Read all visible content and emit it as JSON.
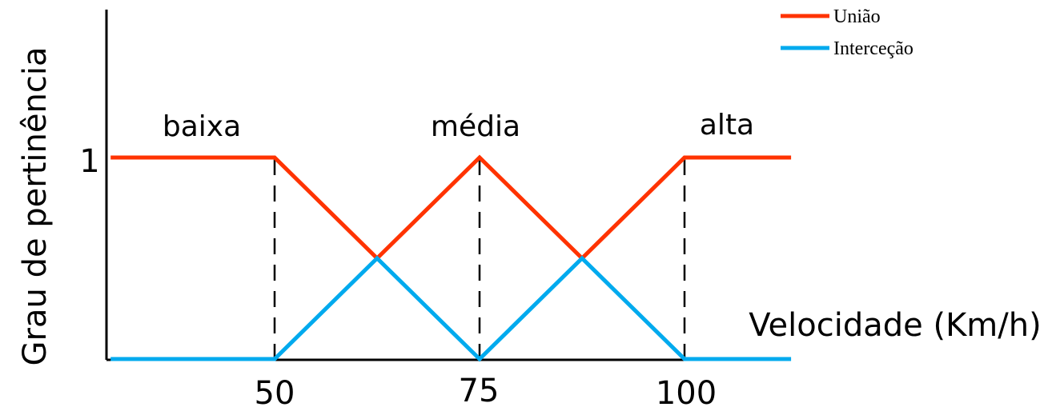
{
  "chart_data": {
    "type": "line",
    "ylabel": "Grau de pertinência",
    "xlabel": "Velocidade (Km/h)",
    "y_tick_label": "1",
    "x_tick_labels": [
      "50",
      "75",
      "100"
    ],
    "xlim": [
      30,
      113
    ],
    "ylim": [
      0,
      1.5
    ],
    "grid": false,
    "legend_position": "top-right",
    "set_labels": [
      {
        "text": "baixa",
        "x": 42
      },
      {
        "text": "média",
        "x": 75
      },
      {
        "text": "alta",
        "x": 99
      }
    ],
    "reference_lines_x": [
      50,
      75,
      100
    ],
    "series": [
      {
        "name": "União",
        "color": "#ff3300",
        "x": [
          30,
          50,
          62.5,
          75,
          87.5,
          100,
          113
        ],
        "y": [
          1,
          1,
          0.5,
          1,
          0.5,
          1,
          1
        ]
      },
      {
        "name": "Interceção",
        "color": "#00aaee",
        "x": [
          30,
          50,
          62.5,
          75,
          87.5,
          100,
          113
        ],
        "y": [
          0,
          0,
          0.5,
          0,
          0.5,
          0,
          0
        ]
      }
    ]
  }
}
